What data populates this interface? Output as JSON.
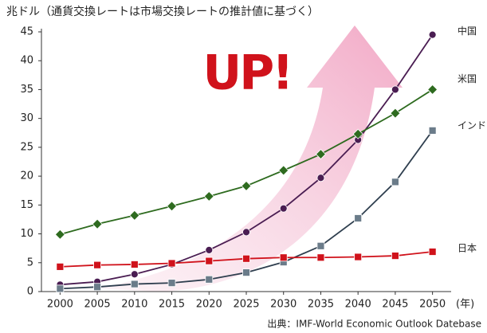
{
  "chart_data": {
    "type": "line",
    "title": "兆ドル（通貨交換レートは市場交換レートの推計値に基づく）",
    "annotation": "UP!",
    "x_unit": "(年)",
    "source": "出典：IMF-World Economic Outlook Datebase",
    "x": [
      2000,
      2005,
      2010,
      2015,
      2020,
      2025,
      2030,
      2035,
      2040,
      2045,
      2050
    ],
    "xlim": [
      1997.5,
      2052.5
    ],
    "xticks": [
      2000,
      2005,
      2010,
      2015,
      2020,
      2025,
      2030,
      2035,
      2040,
      2045,
      2050
    ],
    "ylim": [
      0,
      45
    ],
    "yticks": [
      0,
      5,
      10,
      15,
      20,
      25,
      30,
      35,
      40,
      45
    ],
    "grid": false,
    "series": [
      {
        "name": "中国",
        "color": "#4a1d52",
        "marker": "circle",
        "values": [
          1.2,
          1.7,
          3.0,
          4.7,
          7.2,
          10.3,
          14.4,
          19.7,
          26.3,
          35.0,
          44.5
        ]
      },
      {
        "name": "米国",
        "color": "#2e6b1f",
        "marker": "diamond",
        "values": [
          9.9,
          11.7,
          13.2,
          14.8,
          16.5,
          18.3,
          21.0,
          23.8,
          27.3,
          30.9,
          35.0
        ]
      },
      {
        "name": "インド",
        "color": "#2f3f4f",
        "marker": "square",
        "values": [
          0.5,
          0.8,
          1.3,
          1.5,
          2.1,
          3.3,
          5.1,
          7.9,
          12.7,
          19.0,
          27.9
        ]
      },
      {
        "name": "日本",
        "color": "#d0121b",
        "marker": "square",
        "values": [
          4.3,
          4.6,
          4.7,
          4.9,
          5.3,
          5.7,
          5.9,
          5.9,
          6.0,
          6.2,
          6.9
        ]
      }
    ]
  }
}
